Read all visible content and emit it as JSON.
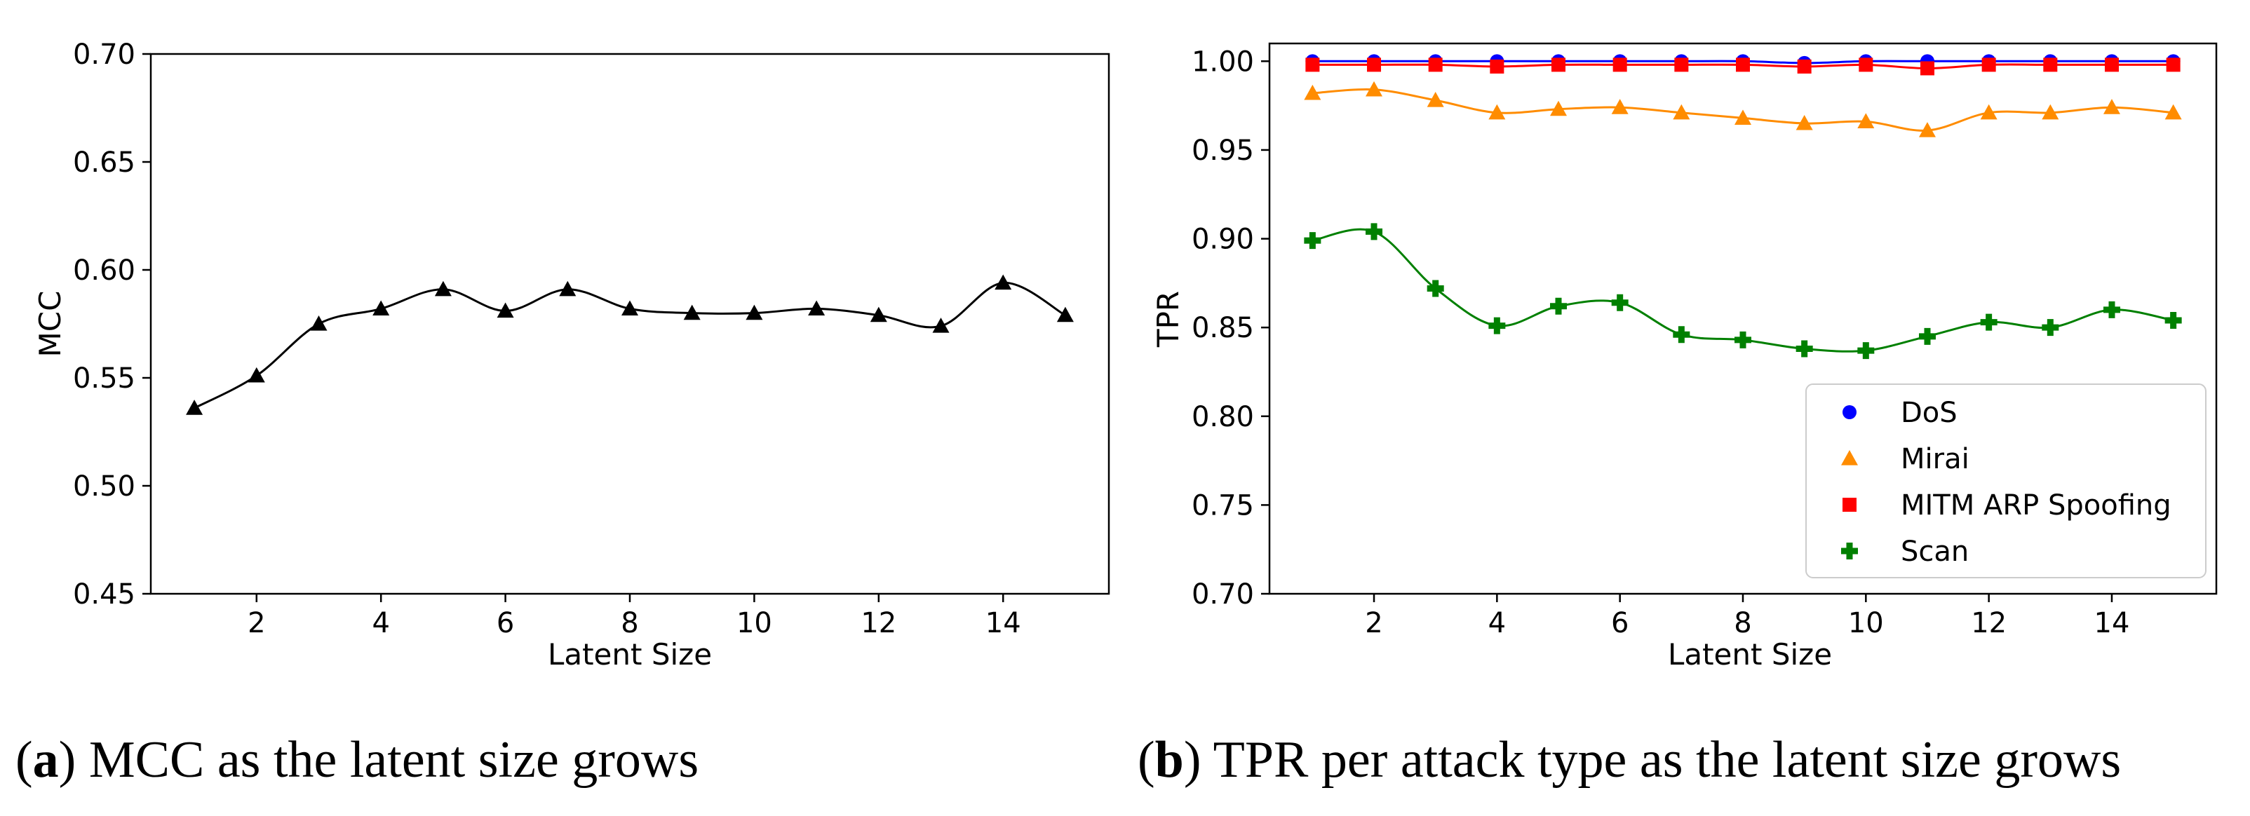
{
  "chart_data": [
    {
      "type": "line",
      "xlabel": "Latent Size",
      "ylabel": "MCC",
      "xlim": [
        0.3,
        15.7
      ],
      "ylim": [
        0.45,
        0.7
      ],
      "xticks": [
        2,
        4,
        6,
        8,
        10,
        12,
        14
      ],
      "yticks": [
        "0.45",
        "0.50",
        "0.55",
        "0.60",
        "0.65",
        "0.70"
      ],
      "caption_letter": "a",
      "caption_text": "MCC as the latent size grows",
      "series": [
        {
          "name": "MCC",
          "color": "#000000",
          "marker": "triangle",
          "x": [
            1,
            2,
            3,
            4,
            5,
            6,
            7,
            8,
            9,
            10,
            11,
            12,
            13,
            14,
            15
          ],
          "values": [
            0.536,
            0.551,
            0.575,
            0.582,
            0.591,
            0.581,
            0.591,
            0.582,
            0.58,
            0.58,
            0.582,
            0.579,
            0.574,
            0.594,
            0.579
          ]
        }
      ]
    },
    {
      "type": "line",
      "xlabel": "Latent Size",
      "ylabel": "TPR",
      "xlim": [
        0.3,
        15.7
      ],
      "ylim": [
        0.7,
        1.01
      ],
      "xticks": [
        2,
        4,
        6,
        8,
        10,
        12,
        14
      ],
      "yticks": [
        "0.70",
        "0.75",
        "0.80",
        "0.85",
        "0.90",
        "0.95",
        "1.00"
      ],
      "legend_position": "lower-right",
      "caption_letter": "b",
      "caption_text": "TPR per attack type as the latent size grows",
      "series": [
        {
          "name": "DoS",
          "color": "#0000ff",
          "marker": "circle",
          "x": [
            1,
            2,
            3,
            4,
            5,
            6,
            7,
            8,
            9,
            10,
            11,
            12,
            13,
            14,
            15
          ],
          "values": [
            1.0,
            1.0,
            1.0,
            1.0,
            1.0,
            1.0,
            1.0,
            1.0,
            0.999,
            1.0,
            1.0,
            1.0,
            1.0,
            1.0,
            1.0
          ]
        },
        {
          "name": "Mirai",
          "color": "#ff8c00",
          "marker": "triangle",
          "x": [
            1,
            2,
            3,
            4,
            5,
            6,
            7,
            8,
            9,
            10,
            11,
            12,
            13,
            14,
            15
          ],
          "values": [
            0.982,
            0.984,
            0.978,
            0.971,
            0.973,
            0.974,
            0.971,
            0.968,
            0.965,
            0.966,
            0.961,
            0.971,
            0.971,
            0.974,
            0.971
          ]
        },
        {
          "name": "MITM ARP Spoofing",
          "color": "#ff0000",
          "marker": "square",
          "x": [
            1,
            2,
            3,
            4,
            5,
            6,
            7,
            8,
            9,
            10,
            11,
            12,
            13,
            14,
            15
          ],
          "values": [
            0.998,
            0.998,
            0.998,
            0.997,
            0.998,
            0.998,
            0.998,
            0.998,
            0.997,
            0.998,
            0.996,
            0.998,
            0.998,
            0.998,
            0.998
          ]
        },
        {
          "name": "Scan",
          "color": "#008000",
          "marker": "plus",
          "x": [
            1,
            2,
            3,
            4,
            5,
            6,
            7,
            8,
            9,
            10,
            11,
            12,
            13,
            14,
            15
          ],
          "values": [
            0.899,
            0.904,
            0.872,
            0.851,
            0.862,
            0.864,
            0.846,
            0.843,
            0.838,
            0.837,
            0.845,
            0.853,
            0.85,
            0.86,
            0.854
          ]
        }
      ]
    }
  ]
}
